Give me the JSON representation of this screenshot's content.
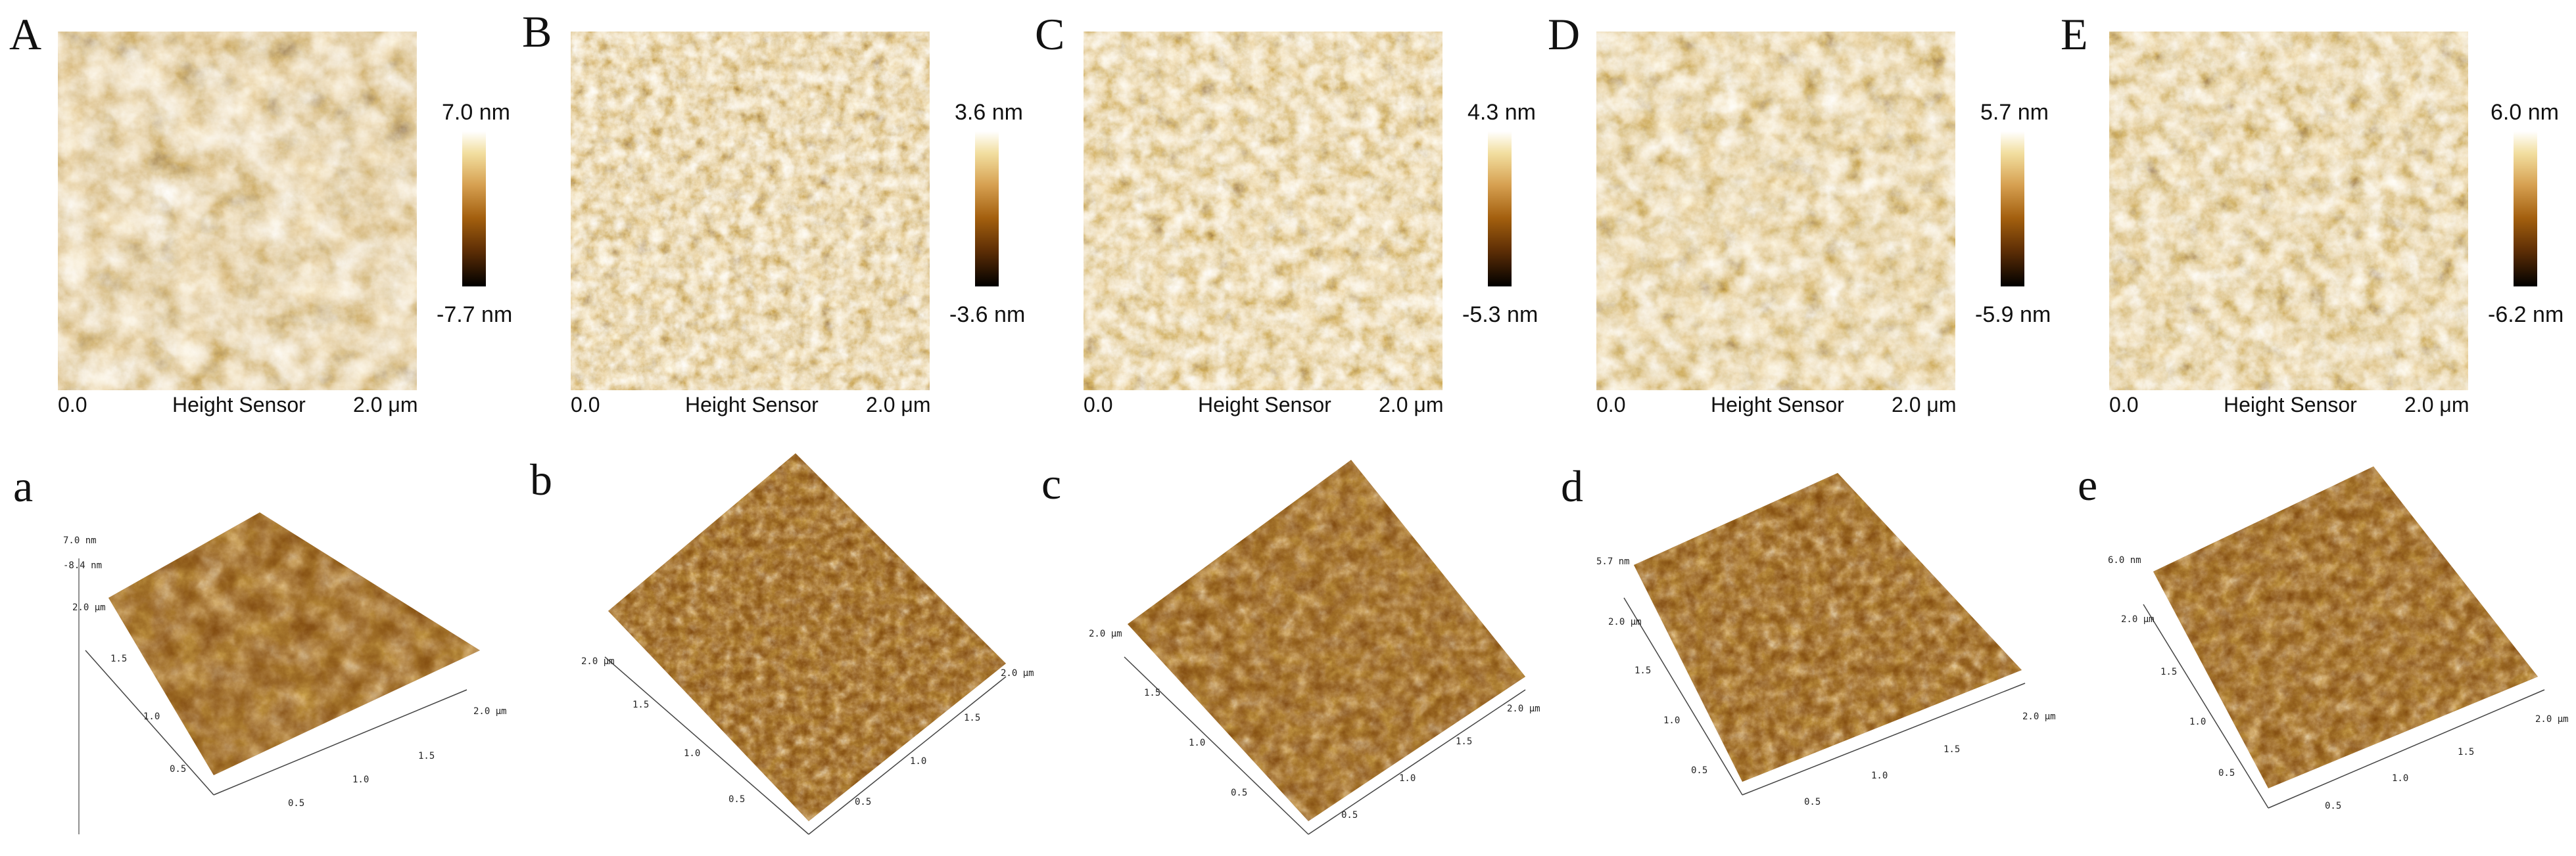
{
  "colors": {
    "high": "#ffffff",
    "mid": "#a35f0e",
    "low": "#000000"
  },
  "top_panels": [
    {
      "letter": "A",
      "max": "7.0 nm",
      "min": "-7.7 nm",
      "x_start": "0.0",
      "channel": "Height Sensor",
      "x_end": "2.0 μm"
    },
    {
      "letter": "B",
      "max": "3.6 nm",
      "min": "-3.6 nm",
      "x_start": "0.0",
      "channel": "Height Sensor",
      "x_end": "2.0 μm"
    },
    {
      "letter": "C",
      "max": "4.3 nm",
      "min": "-5.3 nm",
      "x_start": "0.0",
      "channel": "Height Sensor",
      "x_end": "2.0 μm"
    },
    {
      "letter": "D",
      "max": "5.7 nm",
      "min": "-5.9 nm",
      "x_start": "0.0",
      "channel": "Height Sensor",
      "x_end": "2.0 μm"
    },
    {
      "letter": "E",
      "max": "6.0 nm",
      "min": "-6.2 nm",
      "x_start": "0.0",
      "channel": "Height Sensor",
      "x_end": "2.0 μm"
    }
  ],
  "bottom_panels": [
    {
      "letter": "a",
      "z_top": "7.0 nm",
      "z_bottom": "-8.4 nm",
      "side_left": "2.0 μm",
      "side_right": "2.0 μm"
    },
    {
      "letter": "b",
      "z_top": "",
      "z_bottom": "",
      "side_left": "2.0 μm",
      "side_right": "2.0 μm"
    },
    {
      "letter": "c",
      "z_top": "",
      "z_bottom": "",
      "side_left": "2.0 μm",
      "side_right": "2.0 μm"
    },
    {
      "letter": "d",
      "z_top": "5.7 nm",
      "z_bottom": "",
      "side_left": "2.0 μm",
      "side_right": "2.0 μm"
    },
    {
      "letter": "e",
      "z_top": "6.0 nm",
      "z_bottom": "",
      "side_left": "2.0 μm",
      "side_right": "2.0 μm"
    }
  ],
  "ticks": {
    "t05": "0.5",
    "t10": "1.0",
    "t15": "1.5"
  }
}
